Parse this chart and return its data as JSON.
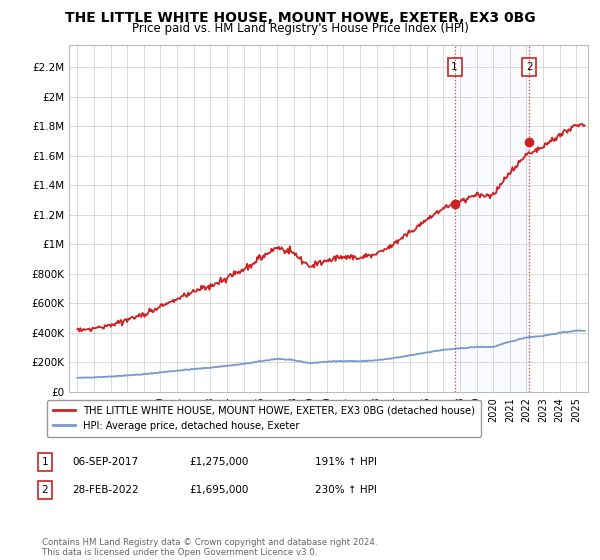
{
  "title": "THE LITTLE WHITE HOUSE, MOUNT HOWE, EXETER, EX3 0BG",
  "subtitle": "Price paid vs. HM Land Registry's House Price Index (HPI)",
  "title_fontsize": 10,
  "subtitle_fontsize": 8.5,
  "ylabel_ticks": [
    "£0",
    "£200K",
    "£400K",
    "£600K",
    "£800K",
    "£1M",
    "£1.2M",
    "£1.4M",
    "£1.6M",
    "£1.8M",
    "£2M",
    "£2.2M"
  ],
  "ytick_values": [
    0,
    200000,
    400000,
    600000,
    800000,
    1000000,
    1200000,
    1400000,
    1600000,
    1800000,
    2000000,
    2200000
  ],
  "ylim": [
    0,
    2350000
  ],
  "xlim_start": 1994.5,
  "xlim_end": 2025.7,
  "hpi_color": "#7799cc",
  "price_color": "#cc2222",
  "marker1_date": 2017.68,
  "marker1_price": 1275000,
  "marker1_label": "1",
  "marker2_date": 2022.16,
  "marker2_price": 1695000,
  "marker2_label": "2",
  "vline_color": "#cc2222",
  "vline_style": ":",
  "marker_color": "#cc2222",
  "legend_line1": "THE LITTLE WHITE HOUSE, MOUNT HOWE, EXETER, EX3 0BG (detached house)",
  "legend_line2": "HPI: Average price, detached house, Exeter",
  "table_row1": [
    "1",
    "06-SEP-2017",
    "£1,275,000",
    "191% ↑ HPI"
  ],
  "table_row2": [
    "2",
    "28-FEB-2022",
    "£1,695,000",
    "230% ↑ HPI"
  ],
  "footer": "Contains HM Land Registry data © Crown copyright and database right 2024.\nThis data is licensed under the Open Government Licence v3.0.",
  "background_color": "#ffffff",
  "grid_color": "#cccccc",
  "hpi_key_years": [
    1995,
    1997,
    1999,
    2001,
    2003,
    2005,
    2007,
    2008,
    2009,
    2010,
    2011,
    2012,
    2013,
    2014,
    2015,
    2016,
    2017,
    2018,
    2019,
    2020,
    2021,
    2022,
    2023,
    2024,
    2025
  ],
  "hpi_key_values": [
    95000,
    105000,
    120000,
    145000,
    165000,
    190000,
    225000,
    215000,
    195000,
    205000,
    210000,
    208000,
    215000,
    228000,
    248000,
    268000,
    285000,
    295000,
    305000,
    305000,
    340000,
    370000,
    380000,
    400000,
    415000
  ]
}
